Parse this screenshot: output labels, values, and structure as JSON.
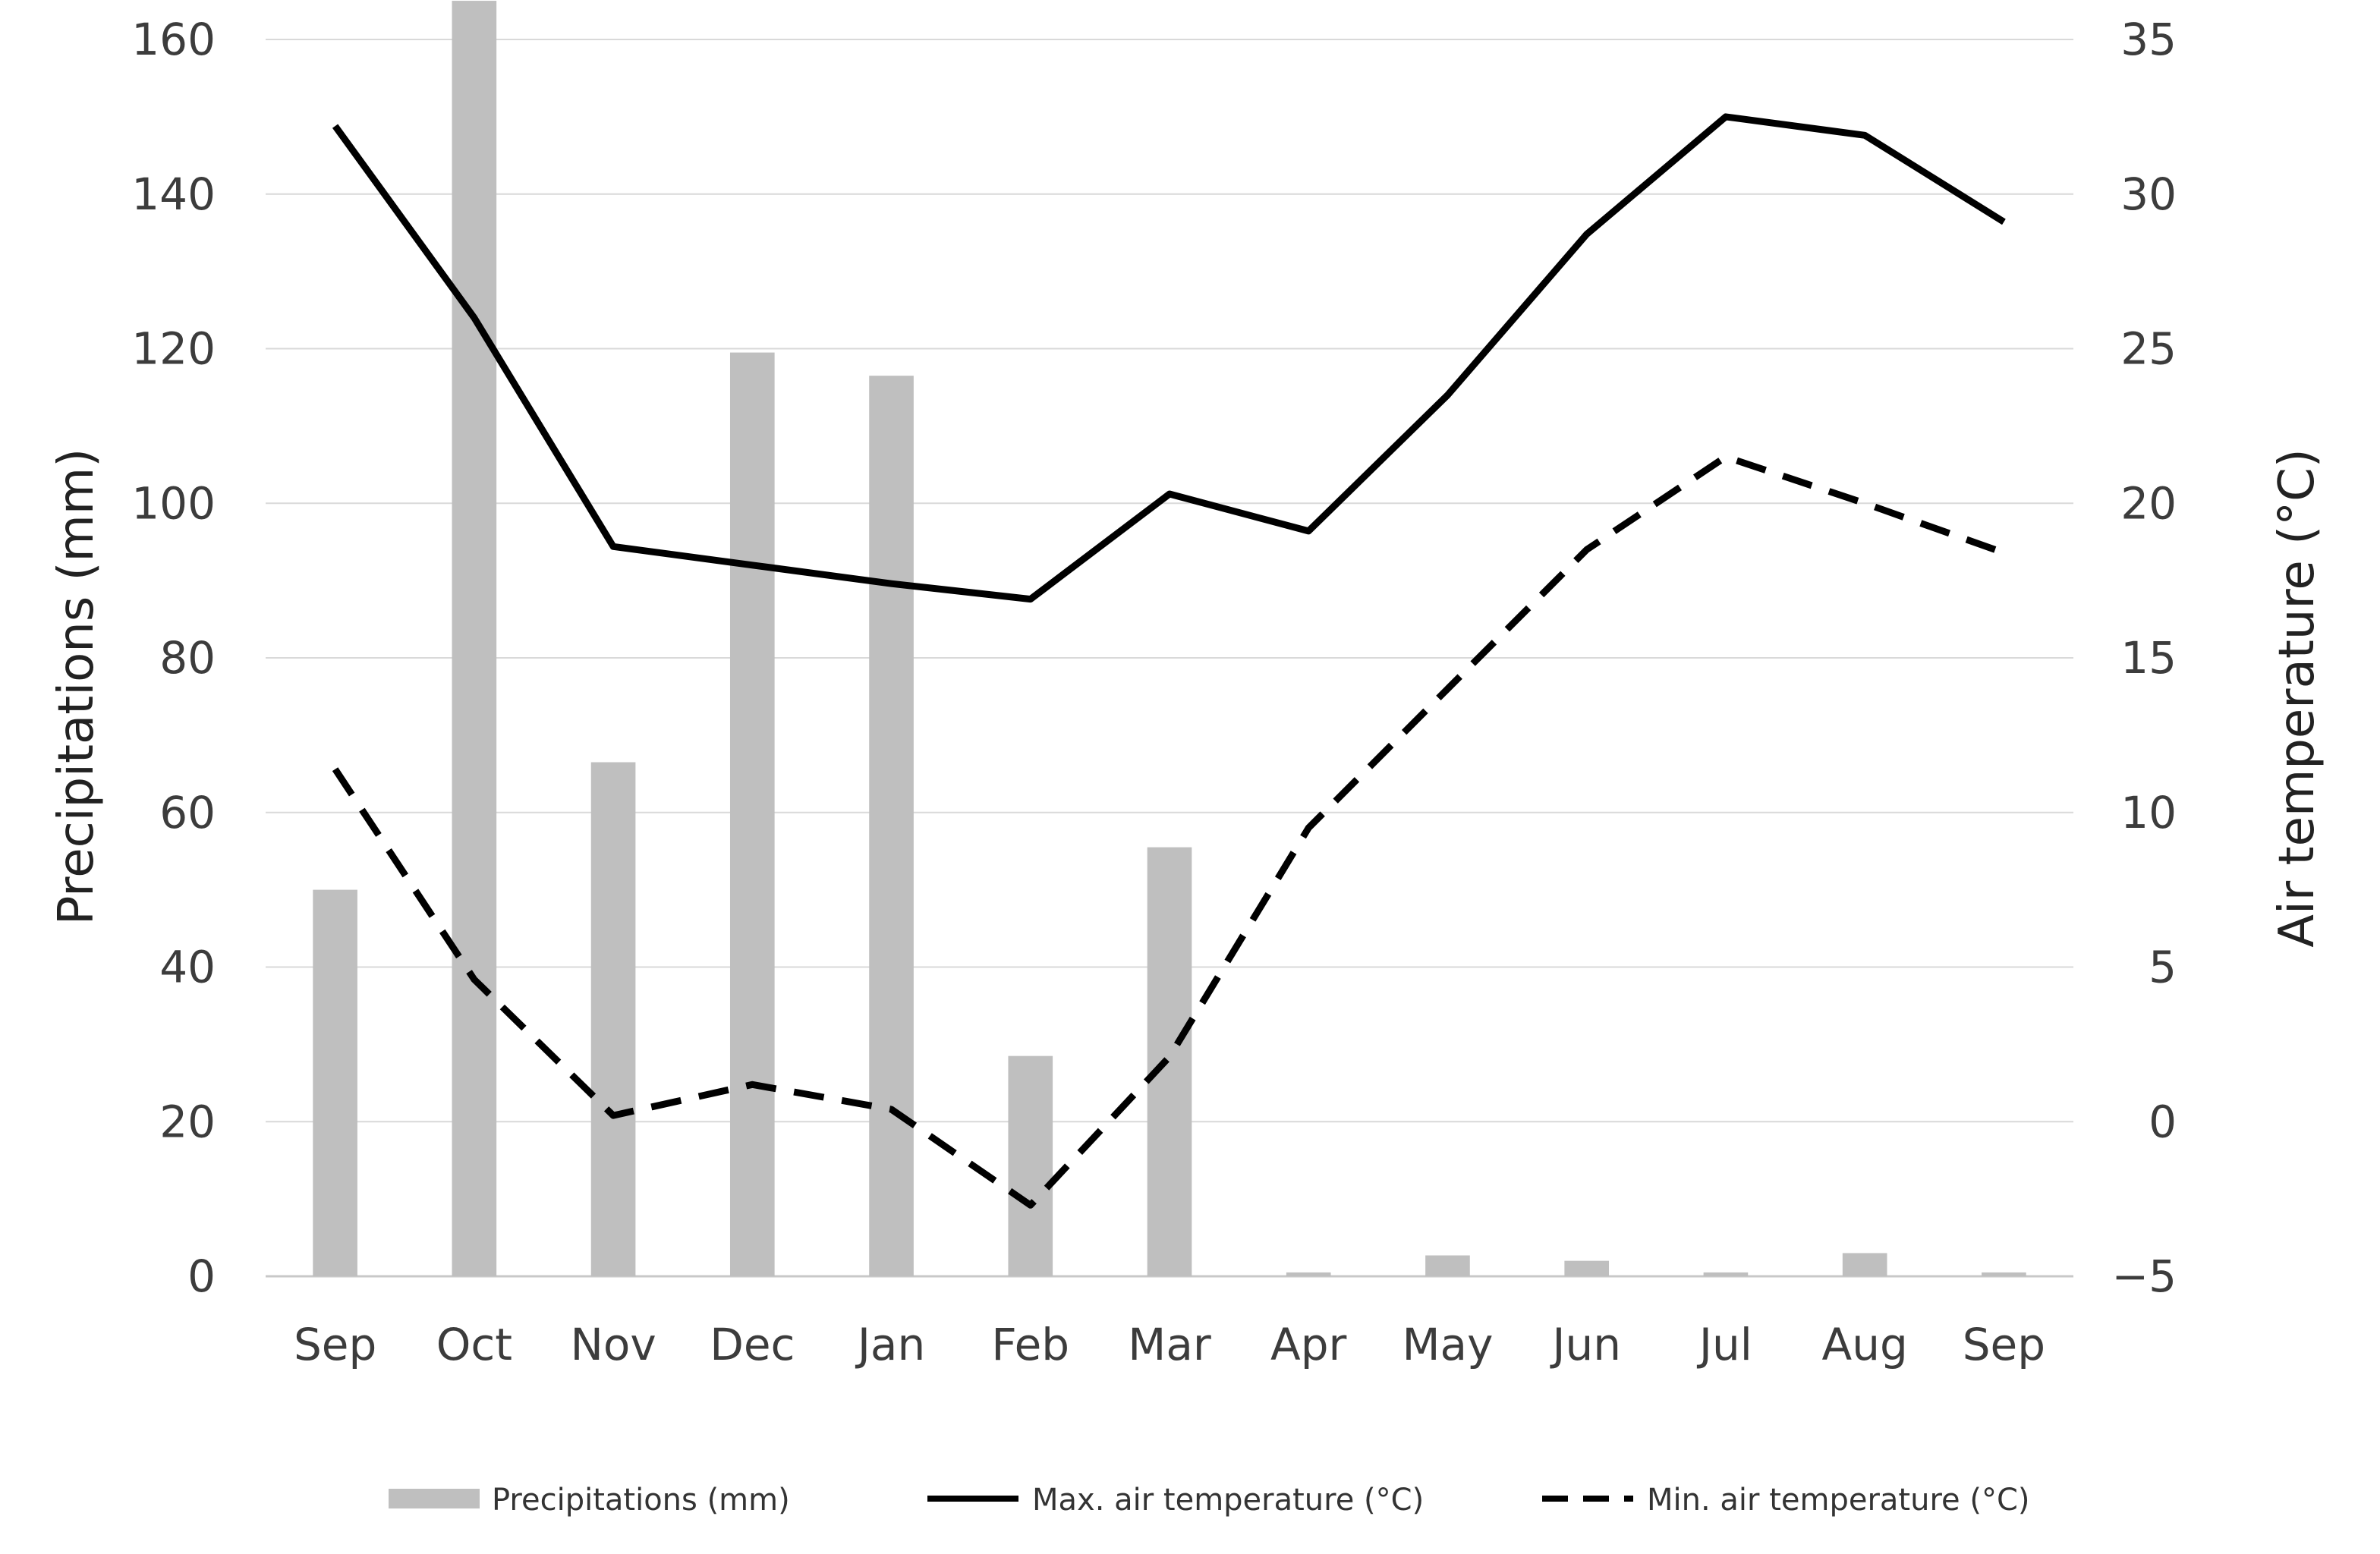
{
  "chart_data": {
    "type": "bar",
    "categories": [
      "Sep",
      "Oct",
      "Nov",
      "Dec",
      "Jan",
      "Feb",
      "Mar",
      "Apr",
      "May",
      "Jun",
      "Jul",
      "Aug",
      "Sep"
    ],
    "ylabel": "Precipitations (mm)",
    "y2label": "Air temperature  (°C)",
    "ylim": [
      0,
      160
    ],
    "y2lim": [
      -5,
      35
    ],
    "yticks": [
      "0",
      "20",
      "40",
      "60",
      "80",
      "100",
      "120",
      "140",
      "160"
    ],
    "y2ticks": [
      "−5",
      "0",
      "5",
      "10",
      "15",
      "20",
      "25",
      "30",
      "35"
    ],
    "grid": true,
    "legend_position": "bottom",
    "series": [
      {
        "name": "Precipitations (mm)",
        "type": "bar",
        "axis": "left",
        "color": "#bfbfbf",
        "values": [
          50,
          165,
          66.5,
          119.5,
          116.5,
          28.5,
          55.5,
          0.5,
          2.7,
          2.0,
          0.5,
          3.0,
          0.5
        ]
      },
      {
        "name": "Max. air temperature (°C)",
        "type": "line",
        "style": "solid",
        "axis": "right",
        "color": "#000000",
        "values": [
          32.2,
          26.0,
          18.6,
          18.0,
          17.4,
          16.9,
          20.3,
          19.1,
          23.5,
          28.7,
          32.5,
          31.9,
          29.1
        ]
      },
      {
        "name": "Min. air temperature (°C)",
        "type": "line",
        "style": "dashed",
        "axis": "right",
        "color": "#000000",
        "values": [
          11.4,
          4.6,
          0.2,
          1.2,
          0.4,
          -2.7,
          2.1,
          9.5,
          14.0,
          18.5,
          21.5,
          20.0,
          18.4
        ]
      }
    ]
  }
}
